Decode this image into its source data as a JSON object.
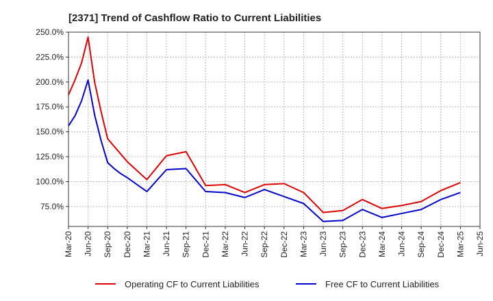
{
  "chart_data": {
    "type": "line",
    "title": "[2371]  Trend of Cashflow Ratio to Current Liabilities",
    "xlabel": "",
    "ylabel": "",
    "ylim": [
      55,
      250
    ],
    "yticks": [
      75,
      100,
      125,
      150,
      175,
      200,
      225,
      250
    ],
    "y_tick_labels": [
      "75.0%",
      "100.0%",
      "125.0%",
      "150.0%",
      "175.0%",
      "200.0%",
      "225.0%",
      "250.0%"
    ],
    "x_tick_labels": [
      "Mar-20",
      "Jun-20",
      "Sep-20",
      "Dec-20",
      "Mar-21",
      "Jun-21",
      "Sep-21",
      "Dec-21",
      "Mar-22",
      "Jun-22",
      "Sep-22",
      "Dec-22",
      "Mar-23",
      "Jun-23",
      "Sep-23",
      "Dec-23",
      "Mar-24",
      "Jun-24",
      "Sep-24",
      "Dec-24",
      "Mar-25",
      "Jun-25"
    ],
    "grid": true,
    "legend_position": "bottom",
    "series": [
      {
        "name": "Operating CF to Current Liabilities",
        "color": "#dd0000",
        "points": [
          [
            0,
            187
          ],
          [
            1,
            202
          ],
          [
            2,
            219
          ],
          [
            3,
            245
          ],
          [
            4,
            200
          ],
          [
            5,
            170
          ],
          [
            6,
            143
          ],
          [
            9,
            120
          ],
          [
            12,
            102
          ],
          [
            15,
            126
          ],
          [
            18,
            130
          ],
          [
            21,
            96
          ],
          [
            24,
            97
          ],
          [
            27,
            89
          ],
          [
            30,
            97
          ],
          [
            33,
            98
          ],
          [
            36,
            89
          ],
          [
            39,
            69
          ],
          [
            42,
            71
          ],
          [
            45,
            82
          ],
          [
            48,
            73
          ],
          [
            51,
            76
          ],
          [
            54,
            80
          ],
          [
            57,
            91
          ],
          [
            60,
            99
          ]
        ]
      },
      {
        "name": "Free CF to Current Liabilities",
        "color": "#0000cc",
        "points": [
          [
            0,
            156
          ],
          [
            1,
            166
          ],
          [
            2,
            181
          ],
          [
            3,
            202
          ],
          [
            4,
            167
          ],
          [
            5,
            141
          ],
          [
            6,
            119
          ],
          [
            7,
            113
          ],
          [
            8,
            108
          ],
          [
            9,
            104
          ],
          [
            12,
            90
          ],
          [
            15,
            112
          ],
          [
            18,
            113
          ],
          [
            21,
            90
          ],
          [
            24,
            89
          ],
          [
            27,
            84
          ],
          [
            30,
            92
          ],
          [
            33,
            85
          ],
          [
            36,
            78
          ],
          [
            39,
            60
          ],
          [
            42,
            61
          ],
          [
            45,
            72
          ],
          [
            48,
            64
          ],
          [
            51,
            68
          ],
          [
            54,
            72
          ],
          [
            57,
            82
          ],
          [
            60,
            89
          ]
        ]
      }
    ]
  }
}
